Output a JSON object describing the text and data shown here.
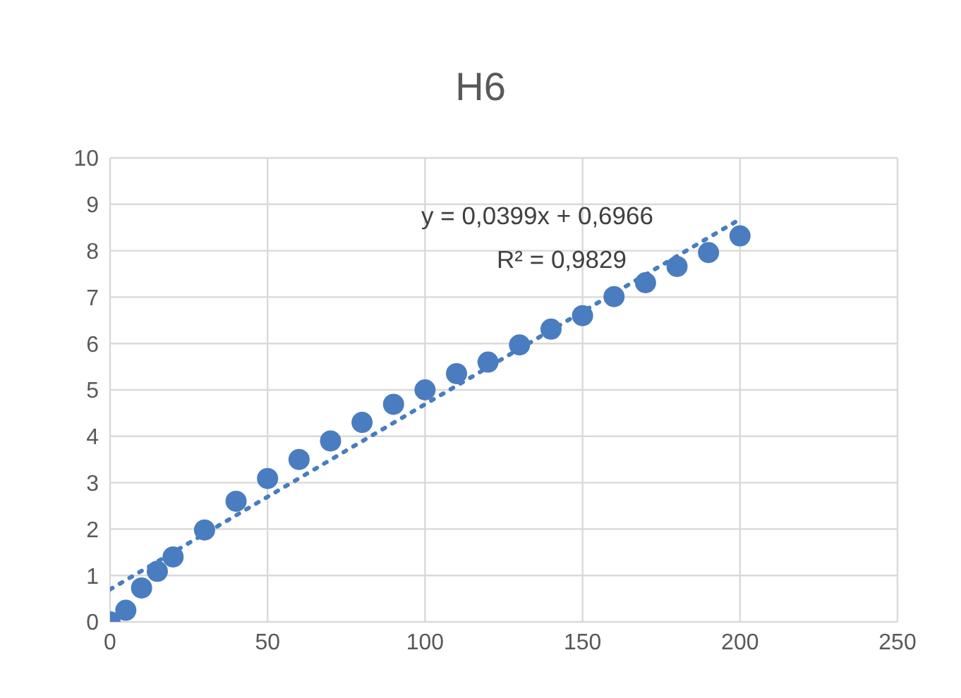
{
  "chart_data": {
    "type": "scatter",
    "title": "H6",
    "x": [
      0,
      5,
      10,
      15,
      20,
      30,
      40,
      50,
      60,
      70,
      80,
      90,
      100,
      110,
      120,
      130,
      140,
      150,
      160,
      170,
      180,
      190,
      200
    ],
    "series": [
      {
        "color": "#4a7dbf",
        "values": [
          0,
          0.25,
          0.73,
          1.09,
          1.4,
          1.98,
          2.6,
          3.09,
          3.5,
          3.9,
          4.3,
          4.69,
          5.0,
          5.35,
          5.6,
          5.97,
          6.31,
          6.6,
          7.01,
          7.31,
          7.66,
          7.96,
          8.32
        ]
      },
      {
        "type": "line",
        "color": "#4a7dbf",
        "line_style": "dotted",
        "marker": "none",
        "x": [
          0,
          200
        ],
        "values": [
          0.7,
          8.68
        ]
      }
    ],
    "annotations": [
      "y = 0,0399x + 0,6966",
      "R² = 0,9829"
    ],
    "xlim": [
      0,
      250
    ],
    "xticks": [
      0,
      50,
      100,
      150,
      200,
      250
    ],
    "ylim": [
      0,
      10
    ],
    "yticks": [
      0,
      1,
      2,
      3,
      4,
      5,
      6,
      7,
      8,
      9,
      10
    ],
    "grid": true,
    "marker": "circle",
    "legend": false
  }
}
